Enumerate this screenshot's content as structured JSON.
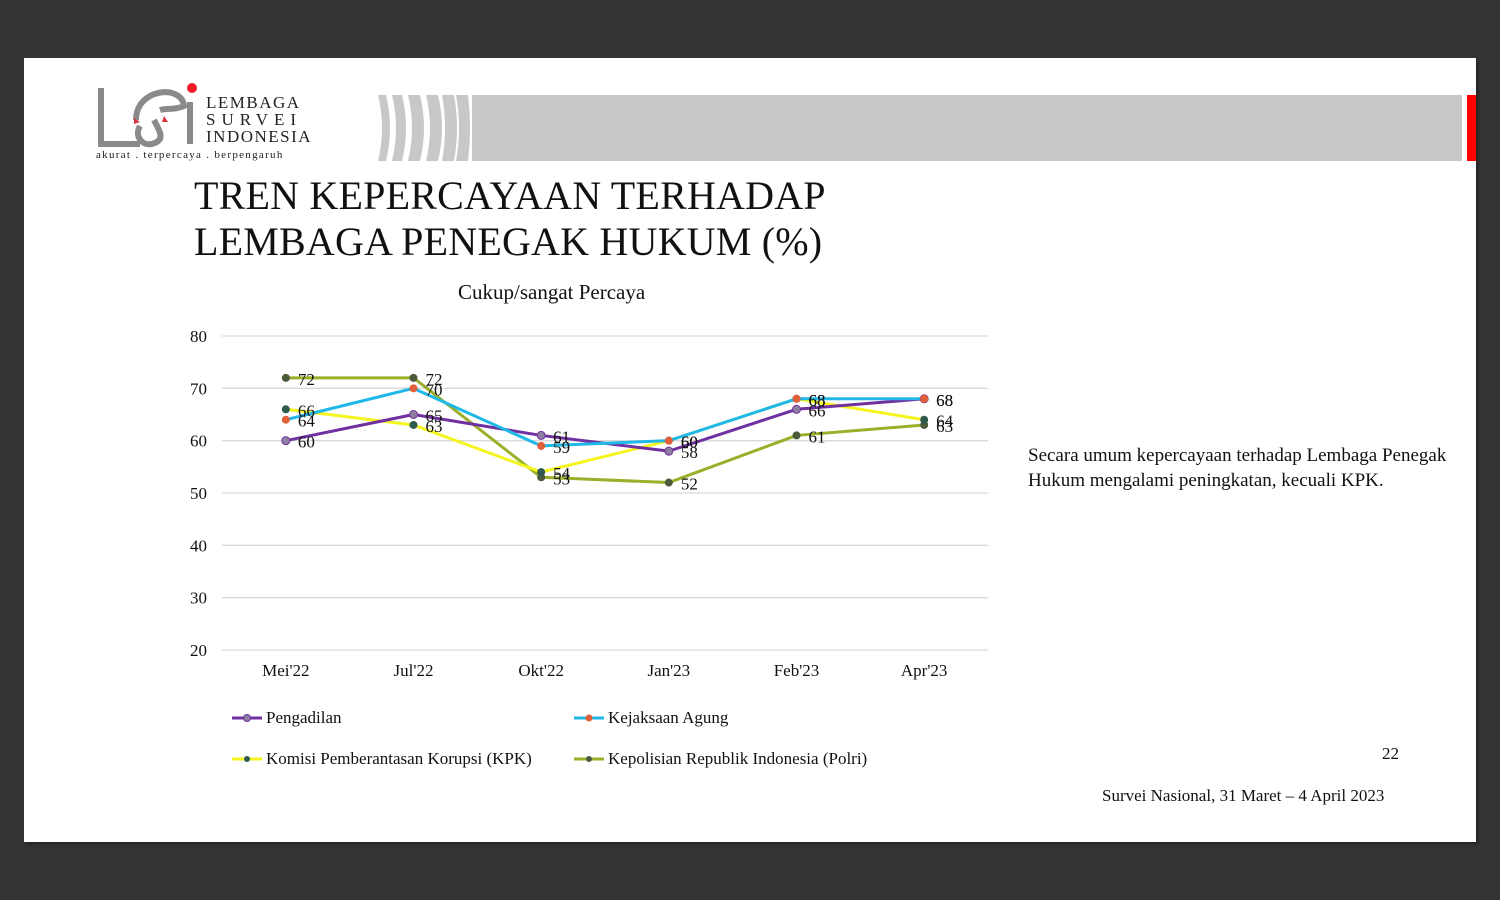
{
  "logo": {
    "line1": "LEMBAGA",
    "line2": "SURVEI",
    "line3": "INDONESIA",
    "tagline": "akurat . terpercaya . berpengaruh"
  },
  "slide": {
    "title_line1": "TREN KEPERCAYAAN TERHADAP",
    "title_line2": "LEMBAGA PENEGAK HUKUM (%)",
    "note": "Secara umum kepercayaan terhadap Lembaga Penegak Hukum mengalami peningkatan, kecuali KPK.",
    "page_number": "22",
    "footer": "Survei Nasional, 31 Maret – 4 April 2023"
  },
  "colors": {
    "brand_red": "#ff0000",
    "banner_gray": "#c8c8c8",
    "pengadilan": "#7030a0",
    "kejaksaan": "#1fb8e8",
    "kpk": "#f5f51e",
    "polri": "#9aaf2a"
  },
  "chart_data": {
    "type": "line",
    "title": "Cukup/sangat Percaya",
    "xlabel": "",
    "ylabel": "",
    "categories": [
      "Mei'22",
      "Jul'22",
      "Okt'22",
      "Jan'23",
      "Feb'23",
      "Apr'23"
    ],
    "yticks": [
      80,
      70,
      60,
      50,
      40,
      30,
      20
    ],
    "ylim": [
      20,
      80
    ],
    "grid": true,
    "legend_position": "bottom",
    "series": [
      {
        "name": "Pengadilan",
        "color": "#7030a0",
        "marker": "#8c7fa0",
        "values": [
          60,
          65,
          61,
          58,
          66,
          68
        ]
      },
      {
        "name": "Kejaksaan Agung",
        "color": "#1fb8e8",
        "marker": "#e0603a",
        "values": [
          64,
          70,
          59,
          60,
          68,
          68
        ]
      },
      {
        "name": "Komisi Pemberantasan Korupsi (KPK)",
        "color": "#f5f51e",
        "marker": "#2f5a50",
        "values": [
          66,
          63,
          54,
          60,
          68,
          64
        ]
      },
      {
        "name": "Kepolisian Republik Indonesia (Polri)",
        "color": "#9aaf2a",
        "marker": "#4a5a3a",
        "values": [
          72,
          72,
          53,
          52,
          61,
          63
        ]
      }
    ]
  }
}
